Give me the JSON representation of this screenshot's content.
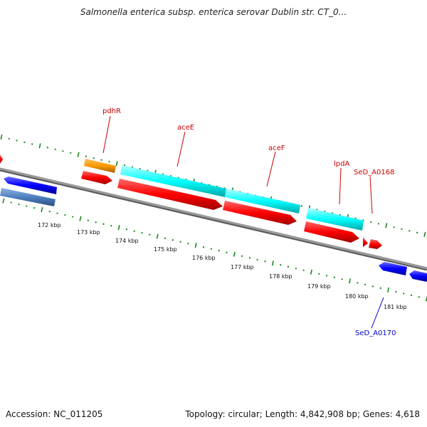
{
  "title": "Salmonella enterica subsp. enterica serovar Dublin str. CT_0...",
  "footer": {
    "accession": "Accession: NC_011205",
    "stats": "Topology: circular; Length: 4,842,908 bp; Genes: 4,618"
  },
  "scale_labels": [
    "172 kbp",
    "173 kbp",
    "174 kbp",
    "175 kbp",
    "176 kbp",
    "177 kbp",
    "178 kbp",
    "179 kbp",
    "180 kbp",
    "181 kbp"
  ],
  "gene_labels": {
    "pdhR": "pdhR",
    "aceE": "aceE",
    "aceF": "aceF",
    "lpdA": "lpdA",
    "SeD_A0168": "SeD_A0168",
    "SeD_A0170": "SeD_A0170"
  },
  "colors": {
    "forward_cds": "#ff0000",
    "reverse_cds": "#0000ff",
    "operon": "#00ffff",
    "regulator": "#ff9900",
    "tick": "#1a8a1a",
    "backbone": "#8c8c8c",
    "label_forward": "#cc0000",
    "label_reverse": "#0000cc"
  }
}
